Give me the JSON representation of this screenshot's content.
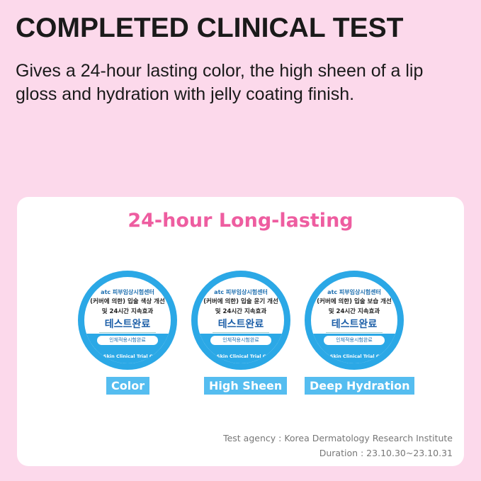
{
  "title": "COMPLETED CLINICAL TEST",
  "subtitle": "Gives a 24-hour lasting color, the high sheen of a lip gloss and hydration with jelly coating finish.",
  "card": {
    "heading": "24-hour Long-lasting",
    "badges": [
      {
        "atc": "atc 피부임상시험센터",
        "line1": "(커버에 의한) 입술 색상 개선",
        "line2": "및 24시간 지속효과",
        "line3": "테스트완료",
        "pill": "인체적용시험완료",
        "ring": "OATC Skin Clinical Trial Center",
        "label": "Color"
      },
      {
        "atc": "atc 피부임상시험센터",
        "line1": "(커버에 의한) 입술 윤기 개선",
        "line2": "및 24시간 지속효과",
        "line3": "테스트완료",
        "pill": "인체적용시험완료",
        "ring": "OATC Skin Clinical Trial Center",
        "label": "High Sheen"
      },
      {
        "atc": "atc 피부임상시험센터",
        "line1": "(커버에 의한) 입술 보습 개선",
        "line2": "및 24시간 지속효과",
        "line3": "테스트완료",
        "pill": "인체적용시험완료",
        "ring": "OATC Skin Clinical Trial Center",
        "label": "Deep Hydration"
      }
    ],
    "agency": "Test agency : Korea Dermatology Research Institute",
    "duration": "Duration : 23.10.30~23.10.31"
  },
  "colors": {
    "background": "#fcd9eb",
    "accent_pink": "#ee5da0",
    "badge_blue": "#2ba8e6",
    "label_blue": "#55bdf0"
  }
}
